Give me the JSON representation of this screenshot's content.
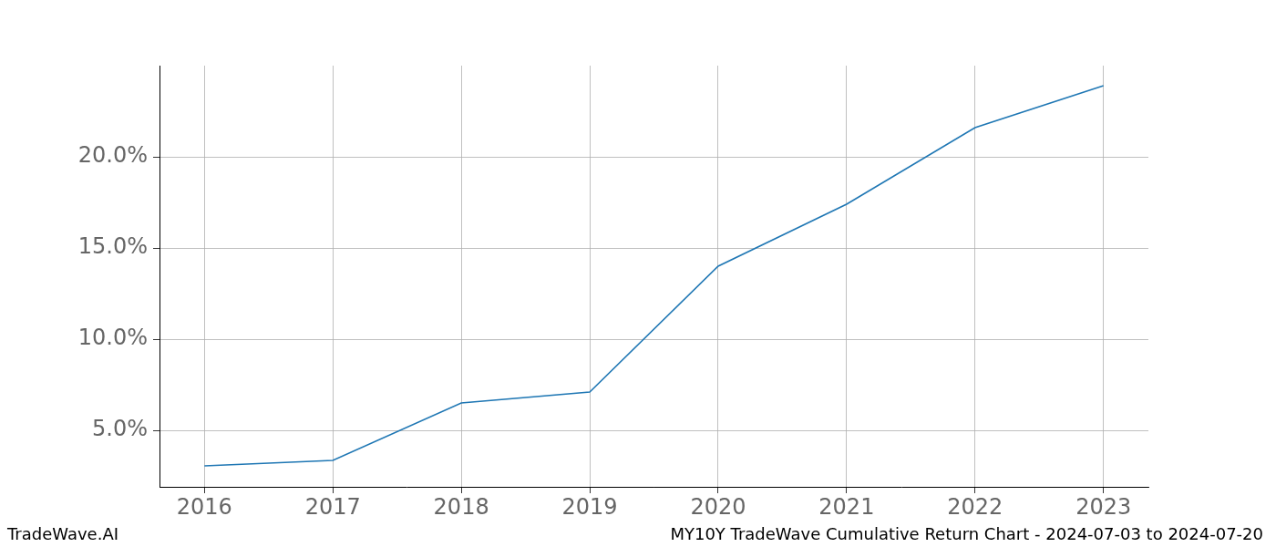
{
  "chart_data": {
    "type": "line",
    "x": [
      2016,
      2017,
      2018,
      2019,
      2020,
      2021,
      2022,
      2023
    ],
    "values": [
      3.05,
      3.35,
      6.5,
      7.1,
      14.0,
      17.4,
      21.6,
      23.9
    ],
    "color": "#1f77b4",
    "xlim": [
      2015.65,
      2023.35
    ],
    "xticks": [
      2016,
      2017,
      2018,
      2019,
      2020,
      2021,
      2022,
      2023
    ],
    "ylim": [
      1.9,
      25.0
    ],
    "yticks": [
      {
        "value": 5,
        "label": "5.0%"
      },
      {
        "value": 10,
        "label": "10.0%"
      },
      {
        "value": 15,
        "label": "15.0%"
      },
      {
        "value": 20,
        "label": "20.0%"
      }
    ],
    "grid": true,
    "annotations": [
      "TradeWave.AI",
      "MY10Y TradeWave Cumulative Return Chart - 2024-07-03 to 2024-07-20"
    ]
  }
}
